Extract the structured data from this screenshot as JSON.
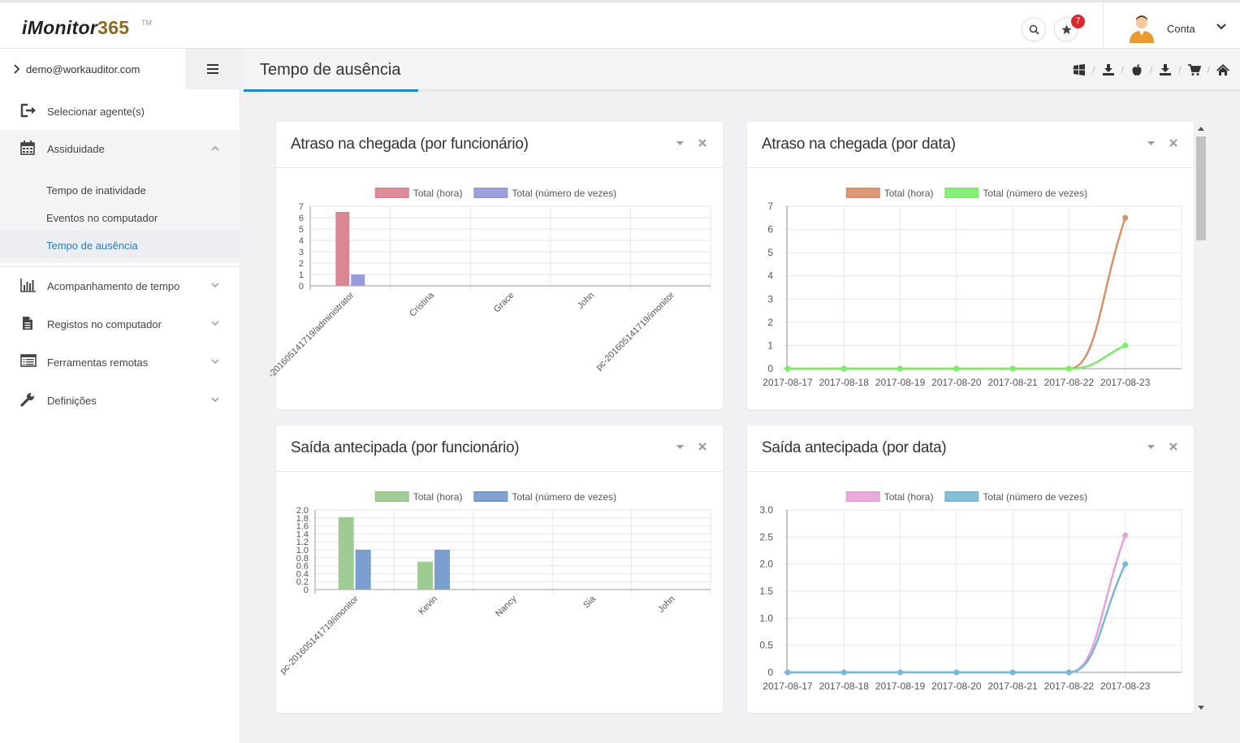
{
  "app": {
    "logo_text": "iMonitor",
    "logo_number": "365",
    "logo_tm": "TM"
  },
  "topbar": {
    "notification_count": "7",
    "account_label": "Conta"
  },
  "sidebar": {
    "user_email": "demo@workauditor.com",
    "items": [
      {
        "label": "Selecionar agente(s)",
        "icon": "logout-icon"
      },
      {
        "label": "Assiduidade",
        "icon": "calendar-icon"
      },
      {
        "label": "Acompanhamento de tempo",
        "icon": "bar-chart-icon"
      },
      {
        "label": "Registos no computador",
        "icon": "document-icon"
      },
      {
        "label": "Ferramentas remotas",
        "icon": "list-icon"
      },
      {
        "label": "Definições",
        "icon": "wrench-icon"
      }
    ],
    "subitems": [
      {
        "label": "Tempo de inatividade"
      },
      {
        "label": "Eventos no computador"
      },
      {
        "label": "Tempo de ausência"
      }
    ]
  },
  "page": {
    "title": "Tempo de ausência"
  },
  "panels": [
    {
      "title": "Atraso na chegada (por funcionário)"
    },
    {
      "title": "Atraso na chegada (por data)"
    },
    {
      "title": "Saída antecipada (por funcionário)"
    },
    {
      "title": "Saída antecipada (por data)"
    }
  ],
  "chart_data": [
    {
      "type": "bar",
      "categories": [
        "-201605141719/administrator",
        "Cristina",
        "Grace",
        "John",
        "pc-201605141719/imonitor"
      ],
      "series": [
        {
          "name": "Total (hora)",
          "color": "#d9818c",
          "values": [
            6.5,
            0,
            0,
            0,
            0
          ]
        },
        {
          "name": "Total (número de vezes)",
          "color": "#9298d8",
          "values": [
            1,
            0,
            0,
            0,
            0
          ]
        }
      ],
      "yticks": [
        "0",
        "1",
        "2",
        "3",
        "4",
        "5",
        "6",
        "7"
      ],
      "ylim": [
        0,
        7
      ]
    },
    {
      "type": "line",
      "categories": [
        "2017-08-17",
        "2017-08-18",
        "2017-08-19",
        "2017-08-20",
        "2017-08-21",
        "2017-08-22",
        "2017-08-23"
      ],
      "series": [
        {
          "name": "Total (hora)",
          "color": "#d98f6a",
          "values": [
            0,
            0,
            0,
            0,
            0,
            0,
            6.5
          ]
        },
        {
          "name": "Total (número de vezes)",
          "color": "#7ceb6a",
          "values": [
            0,
            0,
            0,
            0,
            0,
            0,
            1
          ]
        }
      ],
      "yticks": [
        "0",
        "1",
        "2",
        "3",
        "4",
        "5",
        "6",
        "7"
      ],
      "ylim": [
        0,
        7
      ]
    },
    {
      "type": "bar",
      "categories": [
        "pc-201605141719/imonitor",
        "Kevin",
        "Nancy",
        "Sia",
        "John"
      ],
      "series": [
        {
          "name": "Total (hora)",
          "color": "#98c98a",
          "values": [
            1.82,
            0.7,
            0,
            0,
            0
          ]
        },
        {
          "name": "Total (número de vezes)",
          "color": "#7399cc",
          "values": [
            1,
            1,
            0,
            0,
            0
          ]
        }
      ],
      "yticks": [
        "0",
        "0.2",
        "0.4",
        "0.6",
        "0.8",
        "1.0",
        "1.2",
        "1.4",
        "1.6",
        "1.8",
        "2.0"
      ],
      "ylim": [
        0,
        2.0
      ]
    },
    {
      "type": "line",
      "categories": [
        "2017-08-17",
        "2017-08-18",
        "2017-08-19",
        "2017-08-20",
        "2017-08-21",
        "2017-08-22",
        "2017-08-23"
      ],
      "series": [
        {
          "name": "Total (hora)",
          "color": "#e8a0d8",
          "values": [
            0,
            0,
            0,
            0,
            0,
            0,
            2.53
          ]
        },
        {
          "name": "Total (número de vezes)",
          "color": "#78b8d4",
          "values": [
            0,
            0,
            0,
            0,
            0,
            0,
            2
          ]
        }
      ],
      "yticks": [
        "0",
        "0.5",
        "1.0",
        "1.5",
        "2.0",
        "2.5",
        "3.0"
      ],
      "ylim": [
        0,
        3.0
      ]
    }
  ]
}
